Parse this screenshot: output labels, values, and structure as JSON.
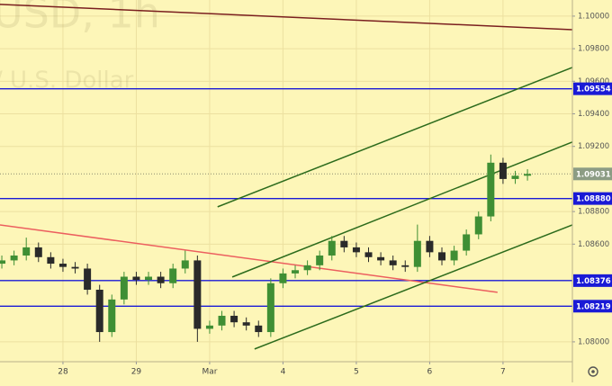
{
  "chart_data": {
    "type": "candlestick",
    "watermark": "USD, 1h",
    "watermark_subtitle": "/ U.S. Dollar",
    "xlim": [
      -20.6,
      166.7
    ],
    "ylim": [
      1.07878,
      1.10099
    ],
    "xticks": [
      {
        "value": 0,
        "label": "28"
      },
      {
        "value": 24,
        "label": "29"
      },
      {
        "value": 48,
        "label": "Mar"
      },
      {
        "value": 72,
        "label": "4"
      },
      {
        "value": 96,
        "label": "5"
      },
      {
        "value": 120,
        "label": "6"
      },
      {
        "value": 144,
        "label": "7"
      }
    ],
    "yticks": [
      {
        "value": 1.1,
        "label": "1.10000"
      },
      {
        "value": 1.098,
        "label": "1.09800"
      },
      {
        "value": 1.096,
        "label": "1.09600"
      },
      {
        "value": 1.094,
        "label": "1.09400"
      },
      {
        "value": 1.092,
        "label": "1.09200"
      },
      {
        "value": 1.088,
        "label": "1.08800"
      },
      {
        "value": 1.086,
        "label": "1.08600"
      },
      {
        "value": 1.08,
        "label": "1.08000"
      }
    ],
    "grid": true,
    "up_color": "#3f8f34",
    "down_color": "#2a2a2a",
    "x": [
      -20,
      -16,
      -12,
      -8,
      -4,
      0,
      4,
      8,
      12,
      16,
      20,
      24,
      28,
      32,
      36,
      40,
      44,
      48,
      52,
      56,
      60,
      64,
      68,
      72,
      76,
      80,
      84,
      88,
      92,
      96,
      100,
      104,
      108,
      112,
      116,
      120,
      124,
      128,
      132,
      136,
      140,
      144,
      148,
      152
    ],
    "open": [
      1.0848,
      1.085,
      1.0853,
      1.0858,
      1.0852,
      1.0848,
      1.0846,
      1.0845,
      1.0832,
      1.0806,
      1.0826,
      1.084,
      1.0838,
      1.084,
      1.0836,
      1.0845,
      1.085,
      1.0808,
      1.081,
      1.0816,
      1.0812,
      1.081,
      1.0806,
      1.0836,
      1.0842,
      1.0844,
      1.0847,
      1.0853,
      1.0862,
      1.0858,
      1.0855,
      1.0852,
      1.085,
      1.0847,
      1.0846,
      1.0862,
      1.0855,
      1.085,
      1.0856,
      1.0866,
      1.0877,
      1.091,
      1.09,
      1.0902
    ],
    "high": [
      1.0853,
      1.0856,
      1.0864,
      1.0861,
      1.0855,
      1.0851,
      1.0849,
      1.0848,
      1.0835,
      1.0829,
      1.0843,
      1.0843,
      1.0843,
      1.0843,
      1.0848,
      1.0856,
      1.0853,
      1.0813,
      1.0819,
      1.0819,
      1.0815,
      1.0813,
      1.0839,
      1.0845,
      1.0847,
      1.085,
      1.0856,
      1.0865,
      1.0865,
      1.0861,
      1.0858,
      1.0855,
      1.0853,
      1.085,
      1.0872,
      1.0865,
      1.0858,
      1.0859,
      1.0869,
      1.088,
      1.0915,
      1.0913,
      1.0905,
      1.0906
    ],
    "low": [
      1.0845,
      1.0847,
      1.085,
      1.0849,
      1.0845,
      1.0843,
      1.0842,
      1.0829,
      1.08,
      1.0803,
      1.0823,
      1.0835,
      1.0835,
      1.0833,
      1.0833,
      1.0842,
      1.08,
      1.0805,
      1.0807,
      1.0809,
      1.0807,
      1.0803,
      1.0803,
      1.0833,
      1.0839,
      1.0841,
      1.0844,
      1.085,
      1.0855,
      1.0852,
      1.0849,
      1.0847,
      1.0844,
      1.0843,
      1.0843,
      1.0852,
      1.0847,
      1.0847,
      1.0853,
      1.0863,
      1.0874,
      1.0897,
      1.0897,
      1.0899
    ],
    "close": [
      1.085,
      1.0853,
      1.0858,
      1.0852,
      1.0848,
      1.0846,
      1.0845,
      1.0832,
      1.0806,
      1.0826,
      1.084,
      1.0838,
      1.084,
      1.0836,
      1.0845,
      1.085,
      1.0808,
      1.081,
      1.0816,
      1.0812,
      1.081,
      1.0806,
      1.0836,
      1.0842,
      1.0844,
      1.0847,
      1.0853,
      1.0862,
      1.0858,
      1.0855,
      1.0852,
      1.085,
      1.0847,
      1.0846,
      1.0862,
      1.0855,
      1.085,
      1.0856,
      1.0866,
      1.0877,
      1.091,
      1.09,
      1.0902,
      1.09031
    ],
    "levels": [
      {
        "value": 1.09554,
        "label": "1.09554"
      },
      {
        "value": 1.0888,
        "label": "1.08880"
      },
      {
        "value": 1.08376,
        "label": "1.08376"
      },
      {
        "value": 1.08219,
        "label": "1.08219"
      }
    ],
    "level_color": "#1a1ad6",
    "last_price": 1.09031,
    "last_price_color": "#8c9c84",
    "trendlines": [
      {
        "color": "#7a1f1f",
        "x": [
          -20.6,
          166.7
        ],
        "y": [
          1.10072,
          1.09917
        ]
      },
      {
        "color": "#ec5f5f",
        "x": [
          -20.6,
          142.2
        ],
        "y": [
          1.08718,
          1.08304
        ]
      },
      {
        "color": "#2c6b1c",
        "x": [
          50.6,
          166.7
        ],
        "y": [
          1.08829,
          1.09685
        ]
      },
      {
        "color": "#2c6b1c",
        "x": [
          55.4,
          166.7
        ],
        "y": [
          1.08398,
          1.09227
        ]
      },
      {
        "color": "#2c6b1c",
        "x": [
          62.7,
          166.7
        ],
        "y": [
          1.07956,
          1.08718
        ]
      }
    ]
  }
}
